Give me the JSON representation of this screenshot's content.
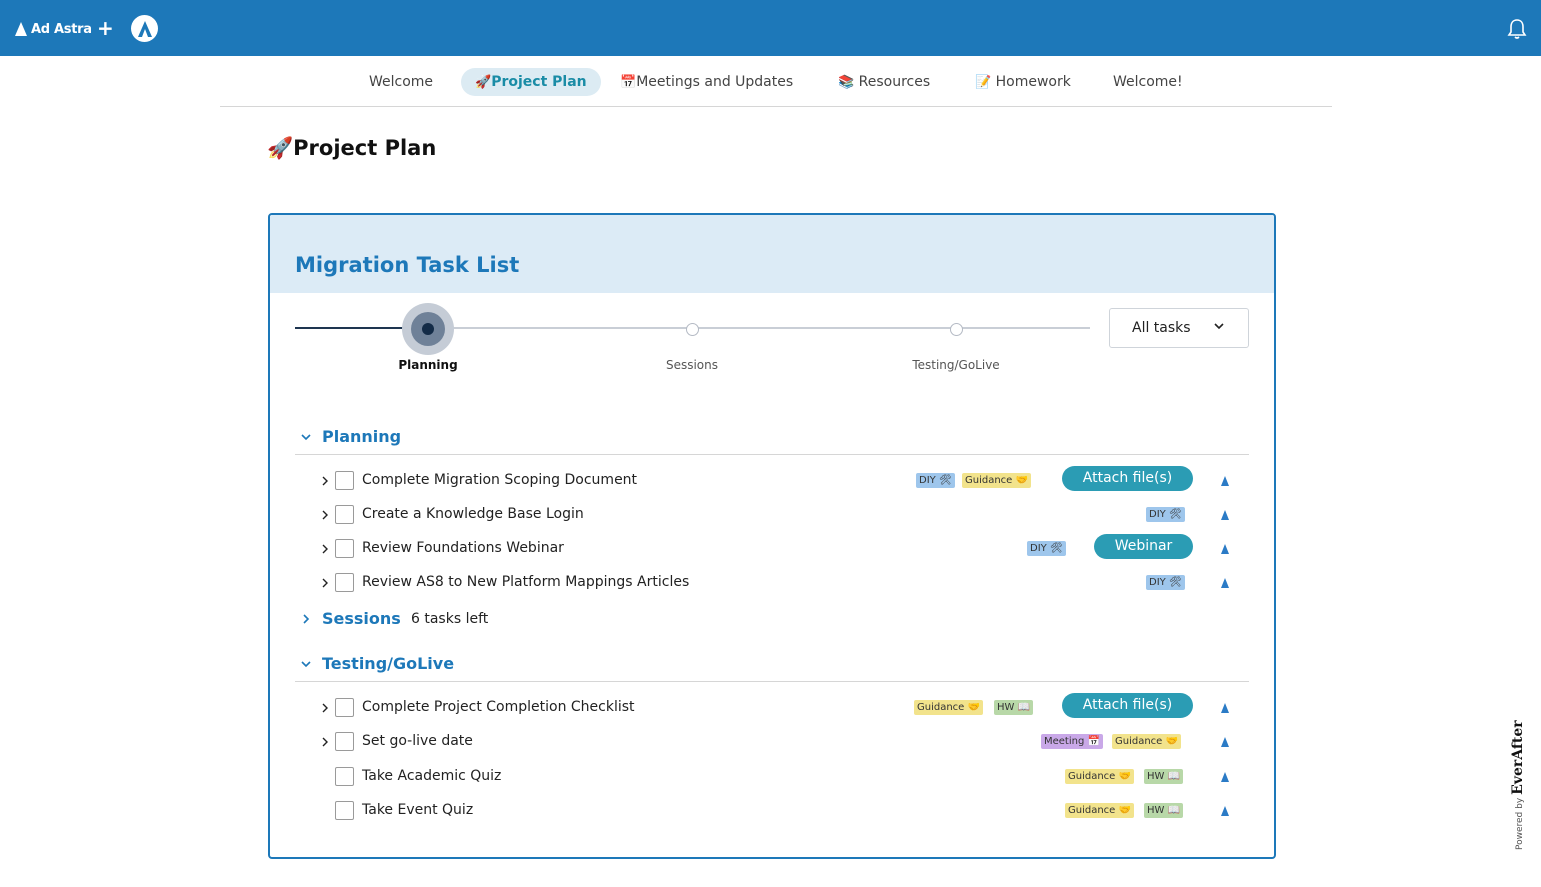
{
  "header": {
    "brand": "Ad Astra",
    "add_icon": "plus-icon",
    "avatar_icon": "ad-astra-logo-icon",
    "bell_icon": "bell-icon",
    "color": "#1d78b9"
  },
  "nav": {
    "tabs": [
      {
        "label": "Welcome",
        "emoji": "",
        "active": false
      },
      {
        "label": "Project Plan",
        "emoji": "🚀",
        "active": true
      },
      {
        "label": "Meetings and Updates",
        "emoji": "📅",
        "active": false
      },
      {
        "label": "Resources",
        "emoji": "📚",
        "active": false
      },
      {
        "label": "Homework",
        "emoji": "📝",
        "active": false
      },
      {
        "label": "Welcome!",
        "emoji": "",
        "active": false
      }
    ]
  },
  "page": {
    "title_emoji": "🚀",
    "title": "Project Plan"
  },
  "card": {
    "title": "Migration Task List",
    "filter": {
      "value": "All tasks"
    },
    "stepper": {
      "steps": [
        "Planning",
        "Sessions",
        "Testing/GoLive"
      ],
      "current": 0
    },
    "sections": {
      "planning": {
        "title": "Planning",
        "expanded": true,
        "tasks": [
          {
            "name": "Complete Migration Scoping Document",
            "badges": [
              "DIY 🛠",
              "Guidance 🤝"
            ],
            "button": "Attach file(s)"
          },
          {
            "name": "Create a Knowledge Base Login",
            "badges": [
              "DIY 🛠"
            ],
            "button": ""
          },
          {
            "name": "Review Foundations Webinar",
            "badges": [
              "DIY 🛠"
            ],
            "button": "Webinar"
          },
          {
            "name": "Review AS8 to New Platform Mappings Articles",
            "badges": [
              "DIY 🛠"
            ],
            "button": ""
          }
        ]
      },
      "sessions": {
        "title": "Sessions",
        "expanded": false,
        "remaining": "6 tasks left"
      },
      "testing": {
        "title": "Testing/GoLive",
        "expanded": true,
        "tasks": [
          {
            "name": "Complete Project Completion Checklist",
            "badges": [
              "Guidance 🤝",
              "HW 📖"
            ],
            "button": "Attach file(s)"
          },
          {
            "name": "Set go-live date",
            "badges": [
              "Meeting 📅",
              "Guidance 🤝"
            ],
            "button": ""
          },
          {
            "name": "Take Academic Quiz",
            "badges": [
              "Guidance 🤝",
              "HW 📖"
            ],
            "button": ""
          },
          {
            "name": "Take Event Quiz",
            "badges": [
              "Guidance 🤝",
              "HW 📖"
            ],
            "button": ""
          }
        ]
      }
    }
  },
  "footer": {
    "powered_by": "Powered by",
    "brand": "EverAfter"
  }
}
